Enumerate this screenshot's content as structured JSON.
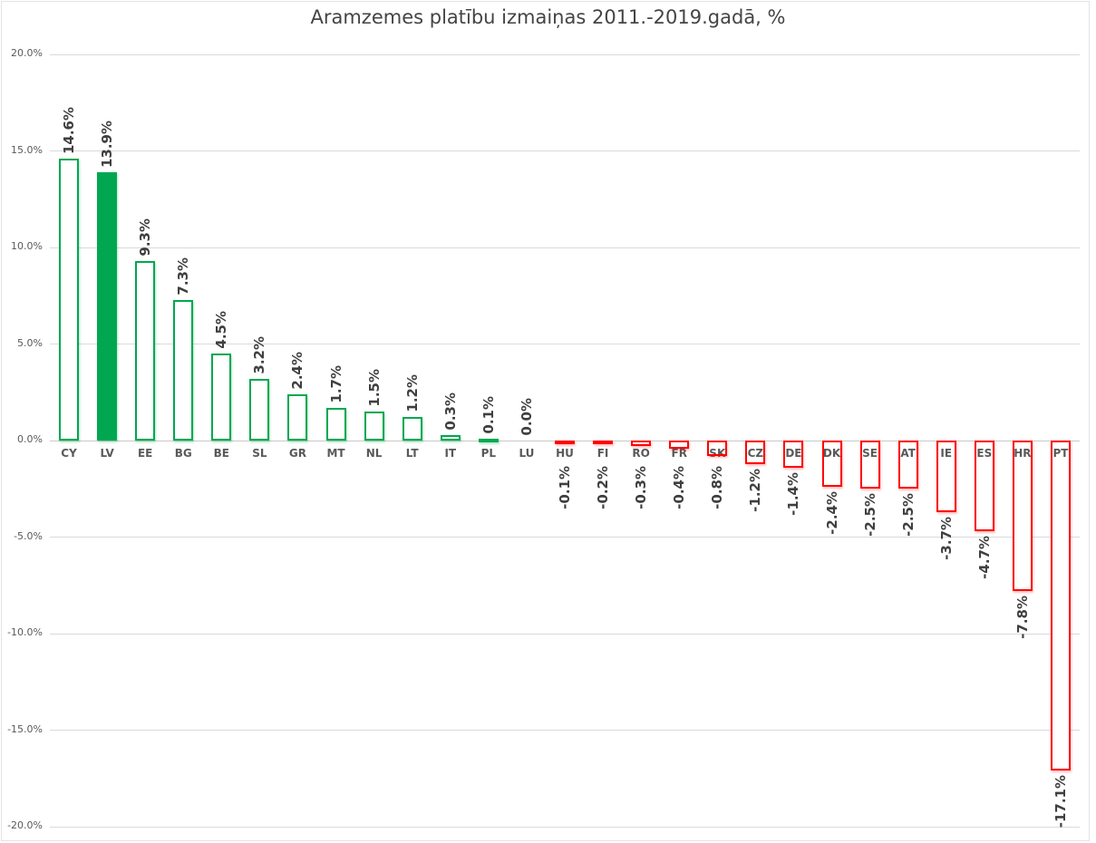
{
  "chart_data": {
    "type": "bar",
    "title": "Aramzemes platību izmaiņas 2011.-2019.gadā, %",
    "categories": [
      "CY",
      "LV",
      "EE",
      "BG",
      "BE",
      "SL",
      "GR",
      "MT",
      "NL",
      "LT",
      "IT",
      "PL",
      "LU",
      "HU",
      "FI",
      "RO",
      "FR",
      "SK",
      "CZ",
      "DE",
      "DK",
      "SE",
      "AT",
      "IE",
      "ES",
      "HR",
      "PT"
    ],
    "values": [
      14.6,
      13.9,
      9.3,
      7.3,
      4.5,
      3.2,
      2.4,
      1.7,
      1.5,
      1.2,
      0.3,
      0.1,
      0.0,
      -0.1,
      -0.2,
      -0.3,
      -0.4,
      -0.8,
      -1.2,
      -1.4,
      -2.4,
      -2.5,
      -2.5,
      -3.7,
      -4.7,
      -7.8,
      -17.1
    ],
    "value_labels": [
      "14.6%",
      "13.9%",
      "9.3%",
      "7.3%",
      "4.5%",
      "3.2%",
      "2.4%",
      "1.7%",
      "1.5%",
      "1.2%",
      "0.3%",
      "0.1%",
      "0.0%",
      "-0.1%",
      "-0.2%",
      "-0.3%",
      "-0.4%",
      "-0.8%",
      "-1.2%",
      "-1.4%",
      "-2.4%",
      "-2.5%",
      "-2.5%",
      "-3.7%",
      "-4.7%",
      "-7.8%",
      "-17.1%"
    ],
    "highlighted_category": "LV",
    "ylim": [
      -20,
      20
    ],
    "ytick_step": 5,
    "ytick_labels": [
      "20.0%",
      "15.0%",
      "10.0%",
      "5.0%",
      "0.0%",
      "-5.0%",
      "-10.0%",
      "-15.0%",
      "-20.0%"
    ],
    "grid": true,
    "legend": "none",
    "colors": {
      "positive_outline": "#00A850",
      "positive_fill": "#00A650",
      "negative_outline": "#FE0000",
      "gridline": "#DADADA",
      "zero_line": "#C9C9C9",
      "title_text": "#444444",
      "tick_text": "#595959",
      "category_text": "#595959",
      "value_text": "#3F3F3F"
    }
  }
}
